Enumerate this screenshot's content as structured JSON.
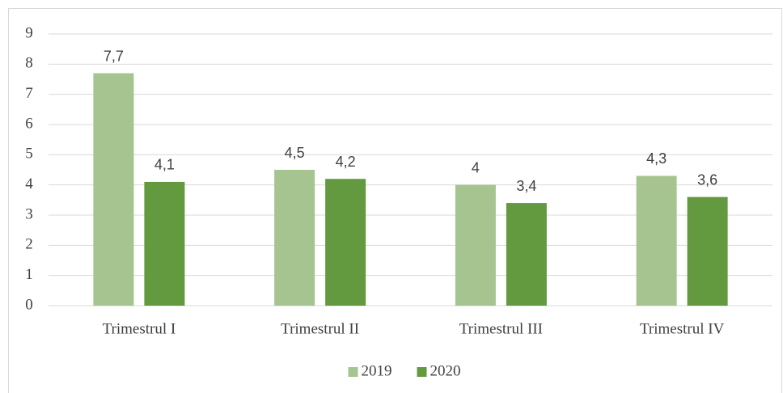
{
  "chart_data": {
    "type": "bar",
    "categories": [
      "Trimestrul I",
      "Trimestrul II",
      "Trimestrul III",
      "Trimestrul IV"
    ],
    "series": [
      {
        "name": "2019",
        "color": "#a5c490",
        "values": [
          7.7,
          4.5,
          4,
          4.3
        ],
        "value_labels": [
          "7,7",
          "4,5",
          "4",
          "4,3"
        ]
      },
      {
        "name": "2020",
        "color": "#639a3f",
        "values": [
          4.1,
          4.2,
          3.4,
          3.6
        ],
        "value_labels": [
          "4,1",
          "4,2",
          "3,4",
          "3,6"
        ]
      }
    ],
    "ylim": [
      0,
      9
    ],
    "yticks": [
      0,
      1,
      2,
      3,
      4,
      5,
      6,
      7,
      8,
      9
    ],
    "grid": true,
    "legend": "bottom"
  }
}
